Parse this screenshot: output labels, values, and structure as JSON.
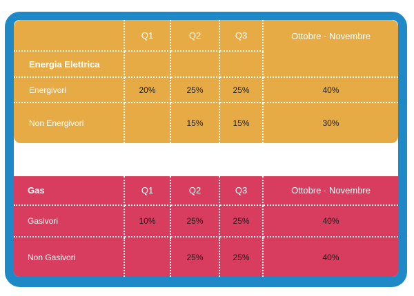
{
  "electric": {
    "title": "Energia Elettrica",
    "headers": [
      "Q1",
      "Q2",
      "Q3",
      "Ottobre - Novembre"
    ],
    "rows": [
      {
        "label": "Energivori",
        "values": [
          "20%",
          "25%",
          "25%",
          "40%"
        ]
      },
      {
        "label": "Non Energivori",
        "values": [
          "",
          "15%",
          "15%",
          "30%"
        ]
      }
    ]
  },
  "gas": {
    "title": "Gas",
    "headers": [
      "Q1",
      "Q2",
      "Q3",
      "Ottobre - Novembre"
    ],
    "rows": [
      {
        "label": "Gasivori",
        "values": [
          "10%",
          "25%",
          "25%",
          "40%"
        ]
      },
      {
        "label": "Non Gasivori",
        "values": [
          "",
          "25%",
          "25%",
          "40%"
        ]
      }
    ]
  },
  "colors": {
    "frame": "#1f88c7",
    "electric_bg": "#e7ab46",
    "gas_bg": "#d83c5e"
  }
}
